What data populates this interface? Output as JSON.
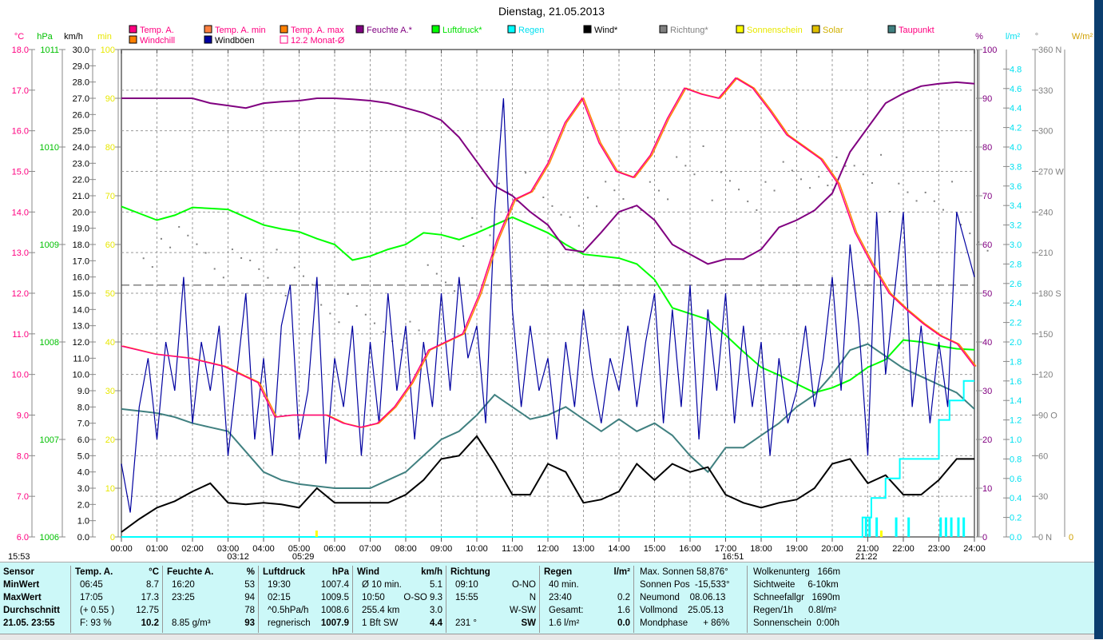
{
  "title": "Dienstag, 21.05.2013",
  "legend": [
    {
      "label": "Temp. A.",
      "color": "#ff0080",
      "text": "#ff0080"
    },
    {
      "label": "Temp. A. min",
      "color": "#ff8040",
      "text": "#ff0080"
    },
    {
      "label": "Temp. A. max",
      "color": "#ff8000",
      "text": "#ff0080"
    },
    {
      "label": "Feuchte A.*",
      "color": "#800080",
      "text": "#800080"
    },
    {
      "label": "Luftdruck*",
      "color": "#00ff00",
      "text": "#00e000"
    },
    {
      "label": "Regen",
      "color": "#00ffff",
      "text": "#00e0f0"
    },
    {
      "label": "Wind*",
      "color": "#000000",
      "text": "#000000"
    },
    {
      "label": "Richtung*",
      "color": "#808080",
      "text": "#808080"
    },
    {
      "label": "Sonnenschein",
      "color": "#ffff00",
      "text": "#e8e800"
    },
    {
      "label": "Solar",
      "color": "#e0c000",
      "text": "#d0b000"
    },
    {
      "label": "Taupunkt",
      "color": "#408080",
      "text": "#ff0080"
    },
    {
      "label": "Windchill",
      "color": "#ff8000",
      "text": "#ff0080"
    },
    {
      "label": "Windböen",
      "color": "#0000a0",
      "text": "#000000"
    },
    {
      "label": "12.2 Monat-Ø",
      "color": "#ffffff",
      "text": "#ff0080"
    }
  ],
  "chart_data": {
    "type": "line",
    "title": "Dienstag, 21.05.2013",
    "x_unit": "hour",
    "xlim": [
      0,
      24
    ],
    "x_ticks": [
      "00:00",
      "01:00",
      "02:00",
      "03:00",
      "04:00",
      "05:00",
      "06:00",
      "07:00",
      "08:00",
      "09:00",
      "10:00",
      "11:00",
      "12:00",
      "13:00",
      "14:00",
      "15:00",
      "16:00",
      "17:00",
      "18:00",
      "19:00",
      "20:00",
      "21:00",
      "22:00",
      "23:00",
      "24:00"
    ],
    "axes": {
      "temp": {
        "label": "°C",
        "range": [
          6,
          18
        ],
        "step": 1,
        "color": "#ff0080"
      },
      "pressure": {
        "label": "hPa",
        "range": [
          1006,
          1011
        ],
        "step": 1,
        "color": "#00c000"
      },
      "wind": {
        "label": "km/h",
        "range": [
          0,
          30
        ],
        "step": 1,
        "color": "#000000"
      },
      "minutes": {
        "label": "min",
        "range": [
          0,
          100
        ],
        "step": 10,
        "color": "#e8e800"
      },
      "humidity": {
        "label": "%",
        "range": [
          0,
          100
        ],
        "step": 10,
        "color": "#800080"
      },
      "rain": {
        "label": "l/m²",
        "range": [
          0,
          5
        ],
        "step": 0.2,
        "max_label": 4.8,
        "color": "#00e0f0"
      },
      "direction": {
        "label": "°",
        "range": [
          0,
          360
        ],
        "step": 30,
        "compass": {
          "0": "N",
          "90": "O",
          "180": "S",
          "270": "W",
          "360": "N"
        },
        "color": "#808080"
      },
      "solar": {
        "label": "W/m²",
        "range": [
          0,
          0
        ],
        "color": "#d0a000"
      }
    },
    "step_30min_series": {
      "temp": [
        10.7,
        10.6,
        10.5,
        10.45,
        10.4,
        10.3,
        10.2,
        10.0,
        9.8,
        8.95,
        9.0,
        9.0,
        9.0,
        8.8,
        8.7,
        8.8,
        9.2,
        9.8,
        10.6,
        10.8,
        11.0,
        12.0,
        13.3,
        14.3,
        14.5,
        15.2,
        16.2,
        16.8,
        15.7,
        15.0,
        14.85,
        15.4,
        16.3,
        17.05,
        16.9,
        16.8,
        17.3,
        17.05,
        16.5,
        15.9,
        15.6,
        15.3,
        14.7,
        13.5,
        12.7,
        12.0,
        11.6,
        11.25,
        10.95,
        10.75,
        10.2
      ],
      "humidity": [
        90,
        90,
        90,
        90,
        90,
        89,
        88.5,
        88,
        89,
        89.3,
        89.5,
        90,
        90,
        89.8,
        89.5,
        89,
        88,
        87,
        85.5,
        82,
        77,
        72,
        70,
        66.7,
        64,
        59,
        58.5,
        62.5,
        66.7,
        68,
        65,
        60,
        58,
        56,
        57,
        57,
        59,
        63.5,
        65,
        67,
        70.5,
        79,
        84,
        89,
        91,
        92.5,
        93,
        93.3,
        93
      ],
      "pressure": [
        1009.39,
        1009.32,
        1009.25,
        1009.3,
        1009.38,
        1009.37,
        1009.36,
        1009.28,
        1009.2,
        1009.16,
        1009.13,
        1009.06,
        1009.0,
        1008.84,
        1008.88,
        1008.95,
        1009.0,
        1009.12,
        1009.1,
        1009.05,
        1009.12,
        1009.2,
        1009.28,
        1009.2,
        1009.12,
        1009.0,
        1008.9,
        1008.88,
        1008.86,
        1008.8,
        1008.64,
        1008.35,
        1008.29,
        1008.23,
        1008.07,
        1007.9,
        1007.74,
        1007.66,
        1007.57,
        1007.48,
        1007.53,
        1007.61,
        1007.74,
        1007.82,
        1008.02,
        1008.0,
        1007.96,
        1007.93,
        1007.92
      ],
      "dewpoint": [
        9.15,
        9.1,
        9.05,
        8.95,
        8.8,
        8.7,
        8.6,
        8.1,
        7.6,
        7.4,
        7.3,
        7.25,
        7.2,
        7.2,
        7.2,
        7.4,
        7.6,
        8.0,
        8.4,
        8.6,
        9.0,
        9.5,
        9.2,
        8.9,
        9.0,
        9.2,
        8.9,
        8.6,
        8.9,
        8.6,
        8.8,
        8.5,
        8.0,
        7.6,
        8.2,
        8.2,
        8.5,
        8.8,
        9.2,
        9.5,
        10.0,
        10.6,
        10.75,
        10.45,
        10.15,
        9.95,
        9.75,
        9.55,
        9.15
      ],
      "wind": [
        0.3,
        1.1,
        1.8,
        2.2,
        2.8,
        3.3,
        2.1,
        2.0,
        2.1,
        2.0,
        1.8,
        3.0,
        2.1,
        2.1,
        2.1,
        2.1,
        2.6,
        3.5,
        4.8,
        5.0,
        6.2,
        4.5,
        2.6,
        2.6,
        4.5,
        4.0,
        2.1,
        2.3,
        2.8,
        4.5,
        3.5,
        4.5,
        4.0,
        4.3,
        2.6,
        2.1,
        1.8,
        2.1,
        2.3,
        3.0,
        4.5,
        4.8,
        3.3,
        3.8,
        2.6,
        2.6,
        3.5,
        4.8,
        4.8
      ]
    },
    "gusts_15min": [
      4.5,
      1.5,
      8,
      11,
      6,
      12,
      9,
      16,
      7,
      12,
      9,
      13,
      5,
      10,
      15,
      6,
      11,
      5,
      13,
      15.5,
      6,
      9,
      16,
      4.5,
      11,
      8,
      13,
      5,
      12,
      7,
      15,
      9,
      13,
      6,
      12,
      8,
      15,
      9,
      16,
      11,
      13,
      7,
      20,
      27,
      14,
      8,
      13,
      9,
      11,
      6,
      12,
      8,
      14,
      10,
      7,
      11,
      9,
      13,
      8,
      12,
      15,
      7,
      14,
      8,
      15.5,
      6,
      14,
      9,
      15,
      7,
      13,
      8,
      12,
      5,
      11,
      7,
      9,
      13,
      8,
      11,
      16,
      9,
      18,
      13,
      5,
      20,
      10,
      15,
      20,
      8,
      13,
      7,
      12,
      8,
      20,
      18,
      16
    ],
    "direction_hourly": [
      null,
      208,
      220,
      205,
      200,
      190,
      172,
      160,
      150,
      195,
      225,
      260,
      245,
      240,
      255,
      250,
      278,
      262,
      250,
      268,
      273,
      270,
      252,
      255,
      220
    ],
    "rain_total_steps": [
      [
        0,
        0
      ],
      [
        20.85,
        0.2
      ],
      [
        21.1,
        0.4
      ],
      [
        21.5,
        0.6
      ],
      [
        21.9,
        0.8
      ],
      [
        22.3,
        0.8
      ],
      [
        23.0,
        1.2
      ],
      [
        23.3,
        1.4
      ],
      [
        23.7,
        1.6
      ],
      [
        24,
        1.6
      ]
    ],
    "rain_bars": [
      [
        20.95,
        0.2
      ],
      [
        21.05,
        0.2
      ],
      [
        21.25,
        0.2
      ],
      [
        21.8,
        0.2
      ],
      [
        22.15,
        0.2
      ],
      [
        23.05,
        0.2
      ],
      [
        23.2,
        0.2
      ],
      [
        23.35,
        0.2
      ],
      [
        23.55,
        0.2
      ],
      [
        23.7,
        0.2
      ]
    ],
    "monthly_avg_temp": 12.2
  },
  "sun_markers": {
    "left": "15:53",
    "moonset": "03:12",
    "sunrise": "05:29",
    "moonrise": "16:51",
    "sunset": "21:22"
  },
  "stats": {
    "sensor": {
      "h": "Sensor",
      "min": "MinWert",
      "max": "MaxWert",
      "avg": "Durchschnitt",
      "now": "21.05. 23:55"
    },
    "temp": {
      "h": "Temp. A.",
      "u": "°C",
      "r1a": "06:45",
      "r1b": "8.7",
      "r2a": "17:05",
      "r2b": "17.3",
      "r3a": "(+ 0.55 )",
      "r3b": "12.75",
      "r4a": "F: 93 %",
      "r4b": "10.2"
    },
    "hum": {
      "h": "Feuchte A.",
      "u": "%",
      "r1a": "16:20",
      "r1b": "53",
      "r2a": "23:25",
      "r2b": "94",
      "r3a": "",
      "r3b": "78",
      "r4a": "8.85 g/m³",
      "r4b": "93"
    },
    "press": {
      "h": "Luftdruck",
      "u": "hPa",
      "r1a": "19:30",
      "r1b": "1007.4",
      "r2a": "02:15",
      "r2b": "1009.5",
      "r3a": "^0.5hPa/h",
      "r3b": "1008.6",
      "r4a": "regnerisch",
      "r4b": "1007.9"
    },
    "wind": {
      "h": "Wind",
      "u": "km/h",
      "r1a": "Ø 10 min.",
      "r1b": "5.1",
      "r2a": "10:50",
      "r2b": "O-SO 9.3",
      "r3a": "255.4 km",
      "r3b": "3.0",
      "r4a": "1 Bft SW",
      "r4b": "4.4"
    },
    "dir": {
      "h": "Richtung",
      "u": "",
      "r1a": "09:10",
      "r1b": "O-NO",
      "r2a": "15:55",
      "r2b": "N",
      "r3a": "",
      "r3b": "W-SW",
      "r4a": "231 °",
      "r4b": "SW"
    },
    "rain": {
      "h": "Regen",
      "u": "l/m²",
      "r1a": "40 min.",
      "r1b": "",
      "r2a": "23:40",
      "r2b": "0.2",
      "r3a": "Gesamt:",
      "r3b": "1.6",
      "r4a": "1.6 l/m²",
      "r4b": "0.0"
    },
    "sun": [
      "Max. Sonnen 58,876°",
      "Sonnen Pos  -15,533°",
      "Neumond    08.06.13",
      "Vollmond    25.05.13",
      "Mondphase      + 86%"
    ],
    "misc": [
      "Wolkenunterg   166m",
      "Sichtweite     6-10km",
      "Schneefallgr   1690m",
      "Regen/1h      0.8l/m²",
      "Sonnenschein  0:00h"
    ]
  }
}
